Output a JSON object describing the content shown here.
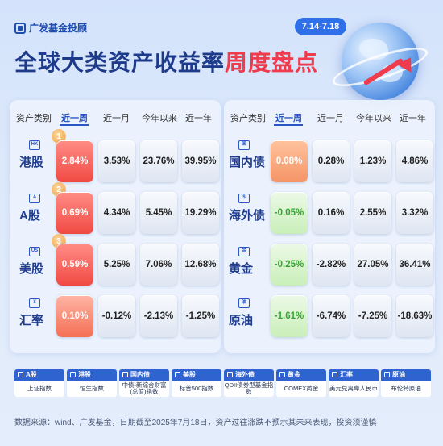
{
  "header": {
    "brand": "广发基金投顾",
    "date_range": "7.14-7.18",
    "title_part1": "全球大类资产收益率",
    "title_part2": "周度盘点"
  },
  "table": {
    "columns": [
      "资产类别",
      "近一周",
      "近一月",
      "今年以来",
      "近一年"
    ],
    "left_rows": [
      {
        "icon": "HK",
        "name": "港股",
        "rank": "1",
        "week": "2.84%",
        "month": "3.53%",
        "ytd": "23.76%",
        "year": "39.95%"
      },
      {
        "icon": "A",
        "name": "A股",
        "rank": "2",
        "week": "0.69%",
        "month": "4.34%",
        "ytd": "5.45%",
        "year": "19.29%"
      },
      {
        "icon": "US",
        "name": "美股",
        "rank": "3",
        "week": "0.59%",
        "month": "5.25%",
        "ytd": "7.06%",
        "year": "12.68%"
      },
      {
        "icon": "¥",
        "name": "汇率",
        "rank": "",
        "week": "0.10%",
        "month": "-0.12%",
        "ytd": "-2.13%",
        "year": "-1.25%"
      }
    ],
    "right_rows": [
      {
        "icon": "国",
        "name": "国内债",
        "week": "0.08%",
        "month": "0.28%",
        "ytd": "1.23%",
        "year": "4.86%"
      },
      {
        "icon": "$",
        "name": "海外债",
        "week": "-0.05%",
        "month": "0.16%",
        "ytd": "2.55%",
        "year": "3.32%"
      },
      {
        "icon": "金",
        "name": "黄金",
        "week": "-0.25%",
        "month": "-2.82%",
        "ytd": "27.05%",
        "year": "36.41%"
      },
      {
        "icon": "油",
        "name": "原油",
        "week": "-1.61%",
        "month": "-6.74%",
        "ytd": "-7.25%",
        "year": "-18.63%"
      }
    ]
  },
  "legend": [
    {
      "title": "A股",
      "index": "上证指数"
    },
    {
      "title": "港股",
      "index": "恒生指数"
    },
    {
      "title": "国内债",
      "index": "中债-新综合财富(总值)指数"
    },
    {
      "title": "美股",
      "index": "标普500指数"
    },
    {
      "title": "海外债",
      "index": "QDII债券型基金指数"
    },
    {
      "title": "黄金",
      "index": "COMEX黄金"
    },
    {
      "title": "汇率",
      "index": "美元兑离岸人民币"
    },
    {
      "title": "原油",
      "index": "布伦特原油"
    }
  ],
  "footnote": "数据来源：wind、广发基金，日期截至2025年7月18日，资产过往涨跌不预示其未来表现，投资须谨慎",
  "colors": {
    "accent": "#2a56c6",
    "up": "#f04a43",
    "down": "#37a334"
  }
}
